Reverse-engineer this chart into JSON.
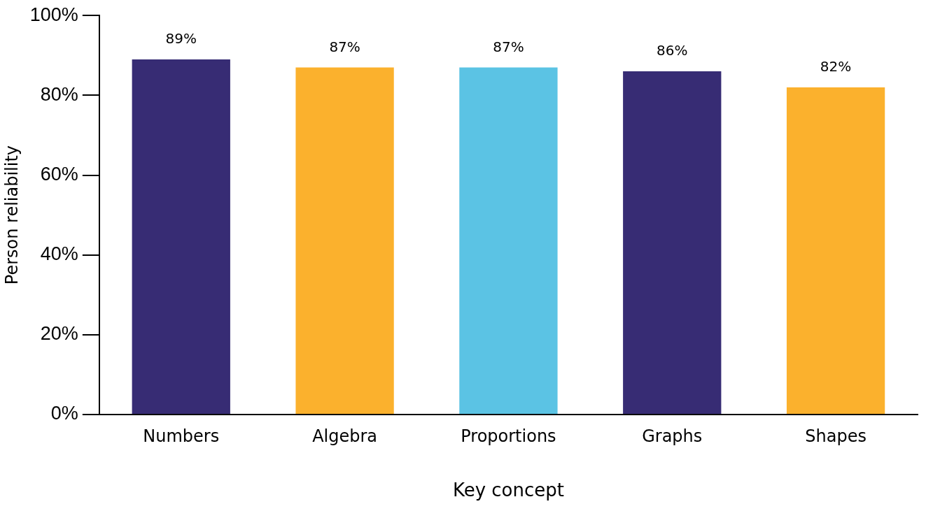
{
  "chart_data": {
    "type": "bar",
    "xlabel": "Key concept",
    "ylabel": "Person reliability",
    "categories": [
      "Numbers",
      "Algebra",
      "Proportions",
      "Graphs",
      "Shapes"
    ],
    "values": [
      89,
      87,
      87,
      86,
      82
    ],
    "value_labels": [
      "89%",
      "87%",
      "87%",
      "86%",
      "82%"
    ],
    "colors": [
      "#372c74",
      "#fbb12d",
      "#5bc3e4",
      "#372c74",
      "#fbb12d"
    ],
    "ylim": [
      0,
      100
    ],
    "yticks": [
      {
        "value": 0,
        "label": "0%"
      },
      {
        "value": 20,
        "label": "20%"
      },
      {
        "value": 40,
        "label": "40%"
      },
      {
        "value": 60,
        "label": "60%"
      },
      {
        "value": 80,
        "label": "80%"
      },
      {
        "value": 100,
        "label": "100%"
      }
    ],
    "grid": false,
    "legend": false
  }
}
